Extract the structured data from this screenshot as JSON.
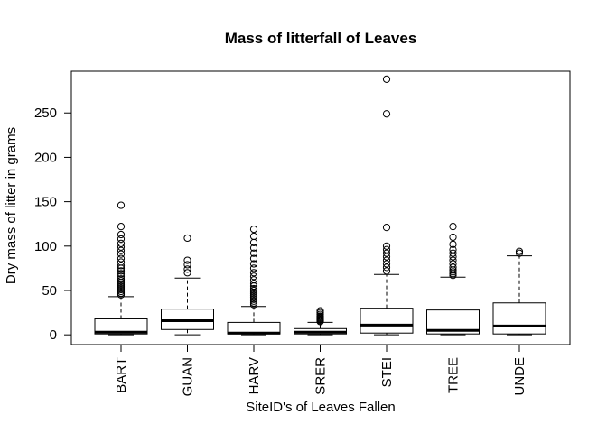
{
  "chart_data": {
    "type": "boxplot",
    "title": "Mass of litterfall of Leaves",
    "xlabel": "SiteID's of Leaves Fallen",
    "ylabel": "Dry mass of litter in grams",
    "ylim": [
      -11,
      297
    ],
    "yticks": [
      0,
      50,
      100,
      150,
      200,
      250
    ],
    "categories": [
      "BART",
      "GUAN",
      "HARV",
      "SRER",
      "STEI",
      "TREE",
      "UNDE"
    ],
    "boxes": [
      {
        "name": "BART",
        "whisker_low": 0,
        "q1": 1,
        "median": 3,
        "q3": 18,
        "whisker_high": 43,
        "outliers": [
          45,
          47,
          49,
          51,
          53,
          55,
          57,
          59,
          61,
          63,
          66,
          69,
          72,
          75,
          78,
          82,
          86,
          91,
          95,
          99,
          103,
          108,
          113,
          122,
          146
        ]
      },
      {
        "name": "GUAN",
        "whisker_low": 0,
        "q1": 6,
        "median": 16,
        "q3": 29,
        "whisker_high": 64,
        "outliers": [
          70,
          74,
          79,
          84,
          109
        ]
      },
      {
        "name": "HARV",
        "whisker_low": 0,
        "q1": 1,
        "median": 2,
        "q3": 14,
        "whisker_high": 32,
        "outliers": [
          34,
          36,
          38,
          40,
          42,
          44,
          46,
          48,
          50,
          52,
          55,
          58,
          62,
          66,
          70,
          75,
          80,
          86,
          92,
          98,
          104,
          111,
          119
        ]
      },
      {
        "name": "SRER",
        "whisker_low": 0,
        "q1": 1,
        "median": 3,
        "q3": 7,
        "whisker_high": 14,
        "outliers": [
          15,
          16,
          17,
          18,
          19,
          20,
          21,
          23,
          25,
          27
        ]
      },
      {
        "name": "STEI",
        "whisker_low": 0,
        "q1": 2,
        "median": 11,
        "q3": 30,
        "whisker_high": 68,
        "outliers": [
          72,
          76,
          80,
          84,
          88,
          92,
          96,
          100,
          121,
          249,
          288
        ]
      },
      {
        "name": "TREE",
        "whisker_low": 0,
        "q1": 1,
        "median": 5,
        "q3": 28,
        "whisker_high": 65,
        "outliers": [
          67,
          69,
          71,
          73,
          76,
          80,
          84,
          88,
          92,
          96,
          102,
          110,
          122
        ]
      },
      {
        "name": "UNDE",
        "whisker_low": 0,
        "q1": 1,
        "median": 10,
        "q3": 36,
        "whisker_high": 89,
        "outliers": [
          92,
          94
        ]
      }
    ]
  }
}
